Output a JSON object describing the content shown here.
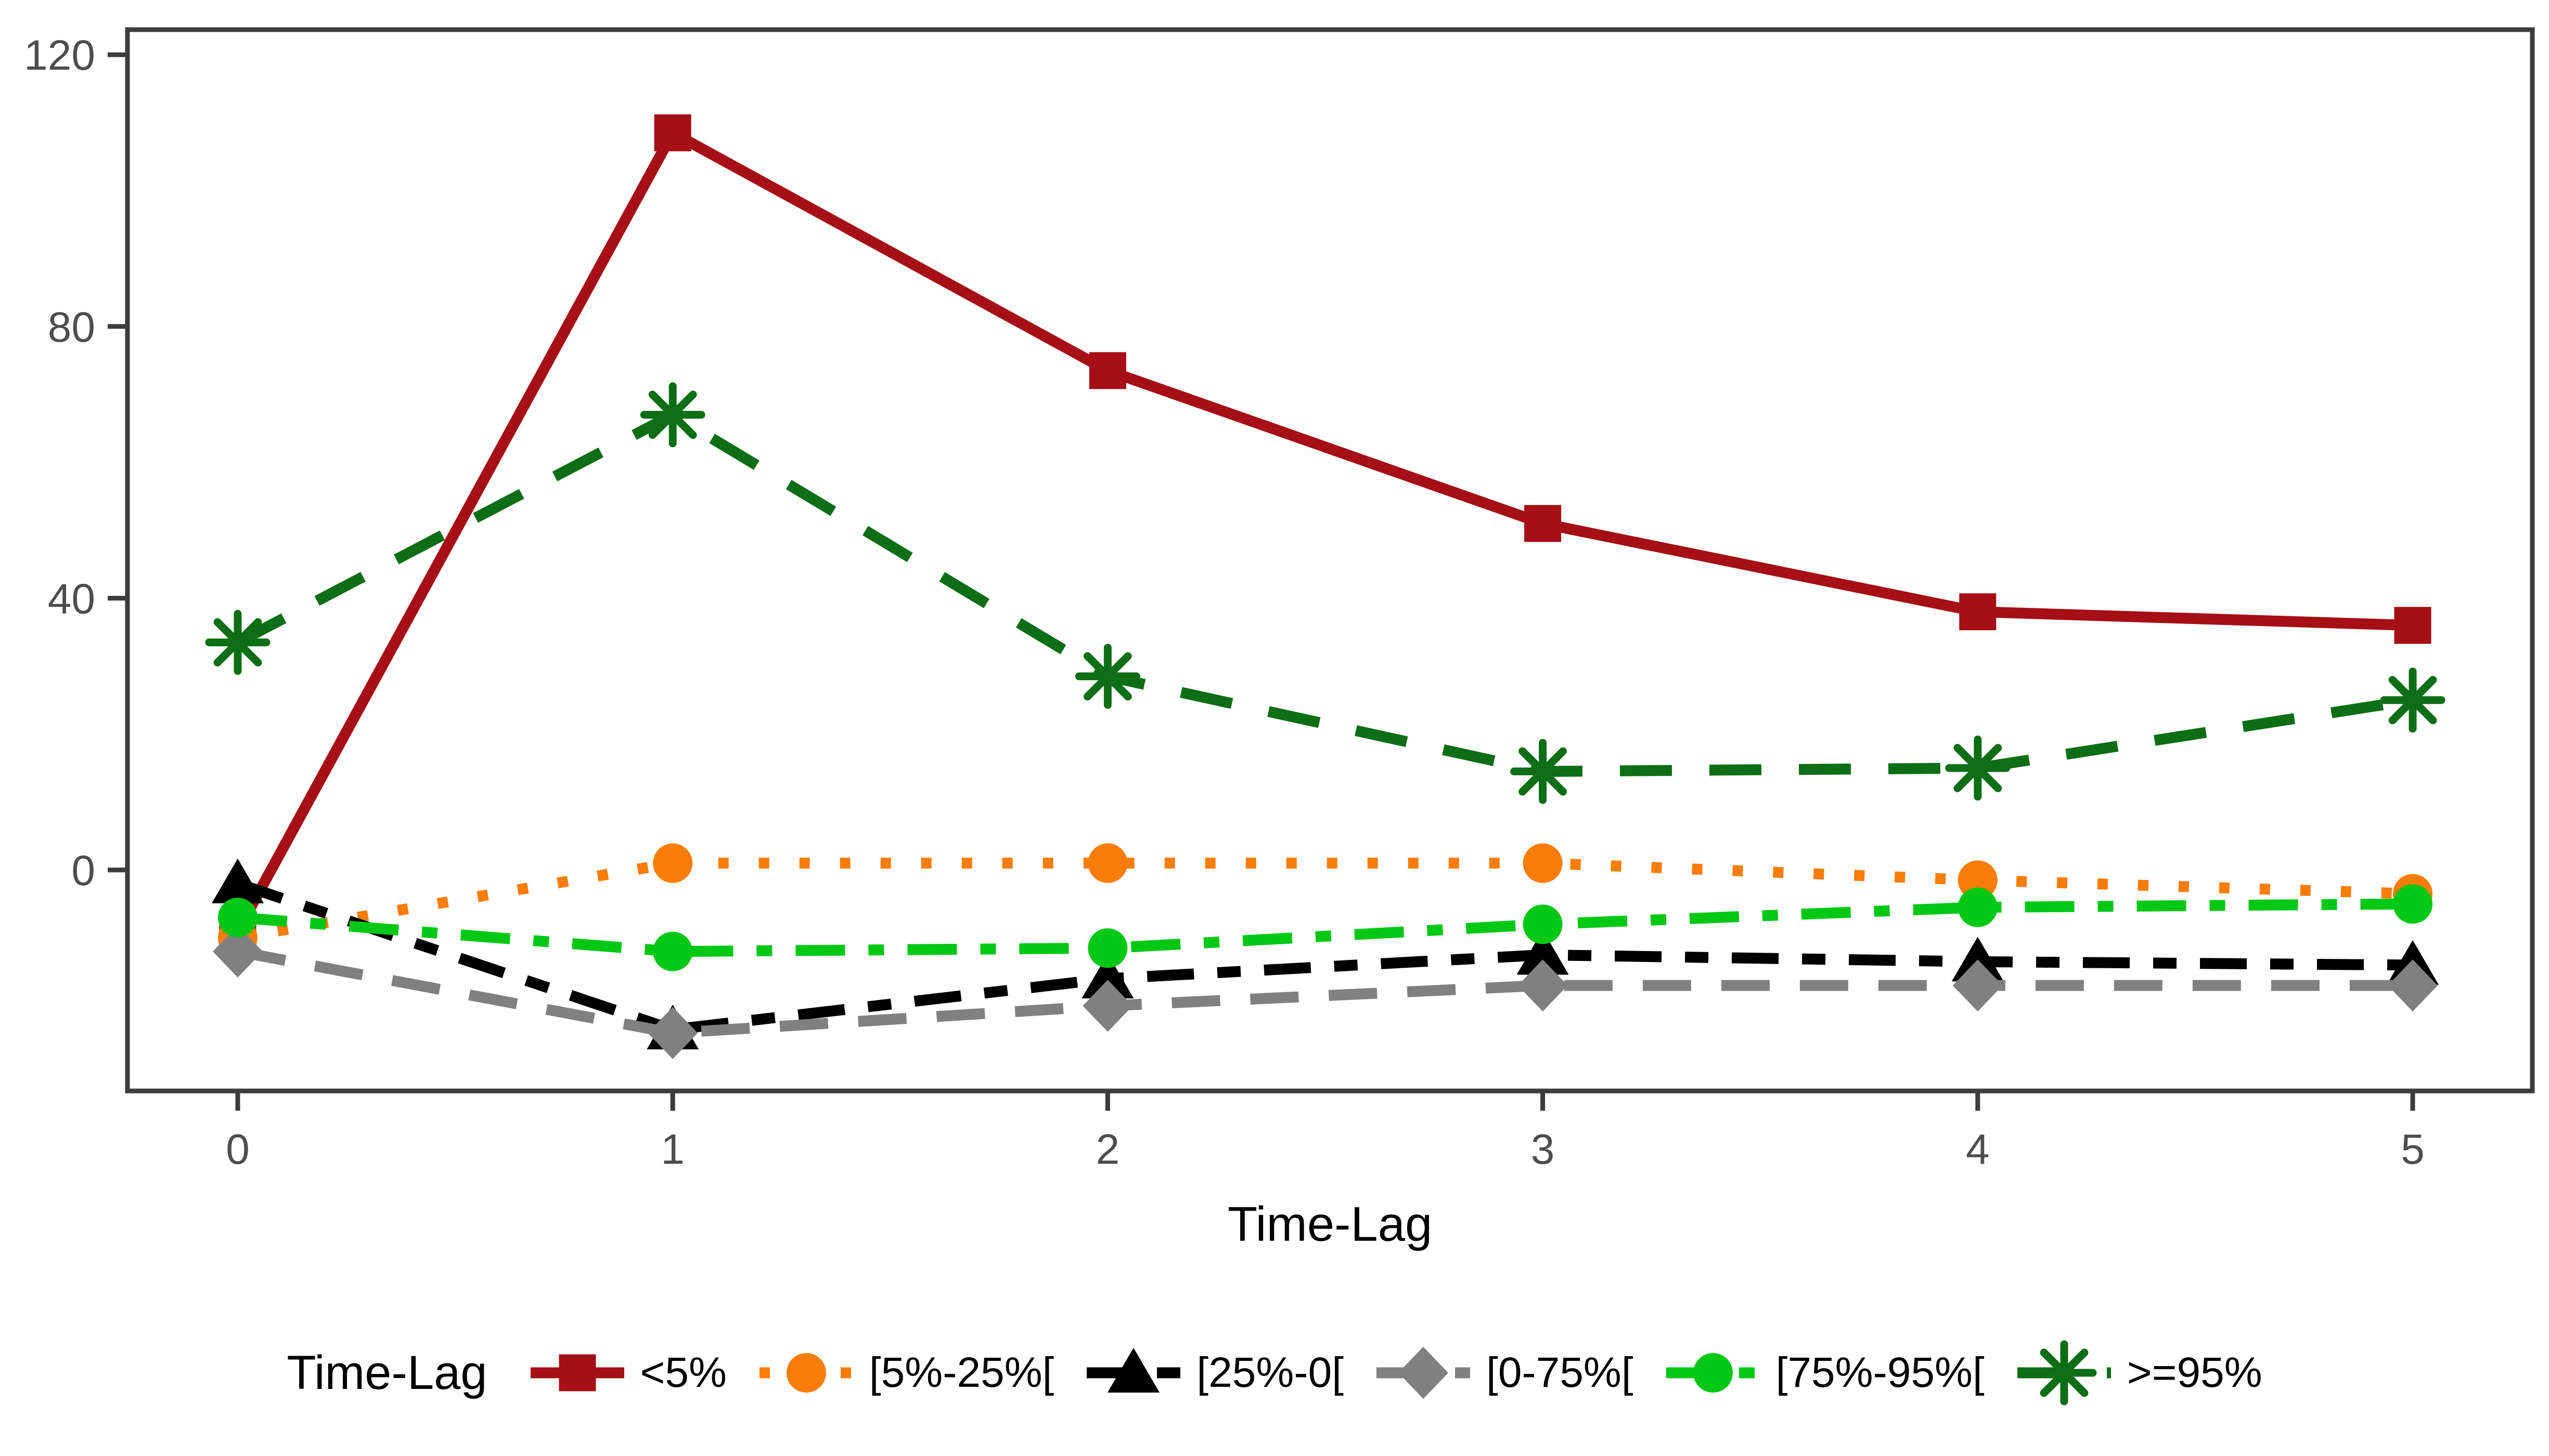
{
  "figure": {
    "background": "#FFFFFF",
    "axis_color": "#3C3C3C",
    "tick_label_color": "#4D4D4D",
    "text_color": "#000000"
  },
  "chart_data": {
    "type": "line",
    "title": "",
    "xlabel": "Time-Lag",
    "ylabel": "",
    "x": [
      0,
      1,
      2,
      3,
      4,
      5
    ],
    "xticks": [
      "0",
      "1",
      "2",
      "3",
      "4",
      "5"
    ],
    "yticks": [
      0,
      40,
      80,
      120
    ],
    "ylim": [
      -32.5,
      123.7
    ],
    "xlim": [
      -0.25,
      5.28
    ],
    "grid": false,
    "legend_position": "bottom",
    "legend_title": "Time-Lag",
    "series": [
      {
        "name": "<5%",
        "color": "#A50F15",
        "marker": "square",
        "line": "solid",
        "values": [
          -9,
          108.5,
          73.5,
          51,
          38,
          36
        ]
      },
      {
        "name": "[5%-25%[",
        "color": "#FA7D09",
        "marker": "circle",
        "line": "dotted",
        "values": [
          -10,
          1,
          1,
          1,
          -1.5,
          -3.5
        ]
      },
      {
        "name": "[25%-0[",
        "color": "#000000",
        "marker": "triangle",
        "line": "twodash",
        "values": [
          -2,
          -23.5,
          -16,
          -12.5,
          -13.5,
          -14
        ]
      },
      {
        "name": "[0-75%[",
        "color": "#808080",
        "marker": "diamond",
        "line": "longdash",
        "values": [
          -12,
          -24,
          -20,
          -17,
          -17,
          -17
        ]
      },
      {
        "name": "[75%-95%[",
        "color": "#00C814",
        "marker": "circle",
        "line": "dashdot",
        "values": [
          -7,
          -12,
          -11.5,
          -8,
          -5.5,
          -5
        ]
      },
      {
        "name": ">=95%",
        "color": "#0D6E15",
        "marker": "asterisk",
        "line": "dashed",
        "values": [
          33.5,
          67,
          28.5,
          14.5,
          15,
          25
        ]
      }
    ]
  }
}
